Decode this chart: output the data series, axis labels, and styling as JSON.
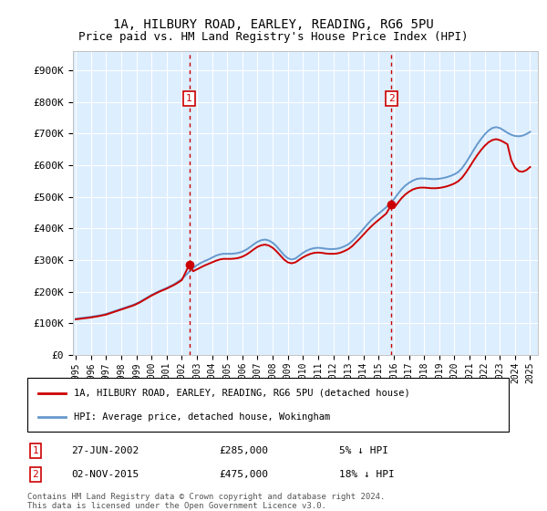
{
  "title1": "1A, HILBURY ROAD, EARLEY, READING, RG6 5PU",
  "title2": "Price paid vs. HM Land Registry's House Price Index (HPI)",
  "ylabel_ticks": [
    "£0",
    "£100K",
    "£200K",
    "£300K",
    "£400K",
    "£500K",
    "£600K",
    "£700K",
    "£800K",
    "£900K"
  ],
  "ytick_values": [
    0,
    100000,
    200000,
    300000,
    400000,
    500000,
    600000,
    700000,
    800000,
    900000
  ],
  "ylim": [
    0,
    960000
  ],
  "xlim_start": 1994.8,
  "xlim_end": 2025.5,
  "xtick_years": [
    1995,
    1996,
    1997,
    1998,
    1999,
    2000,
    2001,
    2002,
    2003,
    2004,
    2005,
    2006,
    2007,
    2008,
    2009,
    2010,
    2011,
    2012,
    2013,
    2014,
    2015,
    2016,
    2017,
    2018,
    2019,
    2020,
    2021,
    2022,
    2023,
    2024,
    2025
  ],
  "legend_line1": "1A, HILBURY ROAD, EARLEY, READING, RG6 5PU (detached house)",
  "legend_line2": "HPI: Average price, detached house, Wokingham",
  "sale1_date": "27-JUN-2002",
  "sale1_price": 285000,
  "sale1_label": "5% ↓ HPI",
  "sale1_x": 2002.49,
  "sale2_date": "02-NOV-2015",
  "sale2_price": 475000,
  "sale2_label": "18% ↓ HPI",
  "sale2_x": 2015.84,
  "footnote1": "Contains HM Land Registry data © Crown copyright and database right 2024.",
  "footnote2": "This data is licensed under the Open Government Licence v3.0.",
  "red_color": "#cc0000",
  "blue_color": "#6699cc",
  "bg_color": "#ddeeff",
  "grid_color": "#ffffff",
  "annotation_box_color": "#cc0000",
  "hpi_wokingham": [
    [
      1995.0,
      115000
    ],
    [
      1995.25,
      116500
    ],
    [
      1995.5,
      118000
    ],
    [
      1995.75,
      119500
    ],
    [
      1996.0,
      121000
    ],
    [
      1996.25,
      123000
    ],
    [
      1996.5,
      125000
    ],
    [
      1996.75,
      127000
    ],
    [
      1997.0,
      130000
    ],
    [
      1997.25,
      134000
    ],
    [
      1997.5,
      138000
    ],
    [
      1997.75,
      142000
    ],
    [
      1998.0,
      146000
    ],
    [
      1998.25,
      150000
    ],
    [
      1998.5,
      154000
    ],
    [
      1998.75,
      158000
    ],
    [
      1999.0,
      163000
    ],
    [
      1999.25,
      169000
    ],
    [
      1999.5,
      176000
    ],
    [
      1999.75,
      183000
    ],
    [
      2000.0,
      190000
    ],
    [
      2000.25,
      196000
    ],
    [
      2000.5,
      202000
    ],
    [
      2000.75,
      207000
    ],
    [
      2001.0,
      212000
    ],
    [
      2001.25,
      218000
    ],
    [
      2001.5,
      224000
    ],
    [
      2001.75,
      232000
    ],
    [
      2002.0,
      240000
    ],
    [
      2002.25,
      252000
    ],
    [
      2002.5,
      264000
    ],
    [
      2002.75,
      275000
    ],
    [
      2003.0,
      284000
    ],
    [
      2003.25,
      291000
    ],
    [
      2003.5,
      297000
    ],
    [
      2003.75,
      302000
    ],
    [
      2004.0,
      308000
    ],
    [
      2004.25,
      314000
    ],
    [
      2004.5,
      318000
    ],
    [
      2004.75,
      320000
    ],
    [
      2005.0,
      320000
    ],
    [
      2005.25,
      320000
    ],
    [
      2005.5,
      321000
    ],
    [
      2005.75,
      323000
    ],
    [
      2006.0,
      327000
    ],
    [
      2006.25,
      333000
    ],
    [
      2006.5,
      341000
    ],
    [
      2006.75,
      350000
    ],
    [
      2007.0,
      358000
    ],
    [
      2007.25,
      363000
    ],
    [
      2007.5,
      365000
    ],
    [
      2007.75,
      362000
    ],
    [
      2008.0,
      355000
    ],
    [
      2008.25,
      344000
    ],
    [
      2008.5,
      330000
    ],
    [
      2008.75,
      316000
    ],
    [
      2009.0,
      306000
    ],
    [
      2009.25,
      302000
    ],
    [
      2009.5,
      305000
    ],
    [
      2009.75,
      314000
    ],
    [
      2010.0,
      323000
    ],
    [
      2010.25,
      330000
    ],
    [
      2010.5,
      335000
    ],
    [
      2010.75,
      338000
    ],
    [
      2011.0,
      339000
    ],
    [
      2011.25,
      338000
    ],
    [
      2011.5,
      336000
    ],
    [
      2011.75,
      335000
    ],
    [
      2012.0,
      335000
    ],
    [
      2012.25,
      336000
    ],
    [
      2012.5,
      339000
    ],
    [
      2012.75,
      344000
    ],
    [
      2013.0,
      350000
    ],
    [
      2013.25,
      360000
    ],
    [
      2013.5,
      372000
    ],
    [
      2013.75,
      385000
    ],
    [
      2014.0,
      399000
    ],
    [
      2014.25,
      413000
    ],
    [
      2014.5,
      426000
    ],
    [
      2014.75,
      437000
    ],
    [
      2015.0,
      447000
    ],
    [
      2015.25,
      457000
    ],
    [
      2015.5,
      467000
    ],
    [
      2015.75,
      478000
    ],
    [
      2016.0,
      492000
    ],
    [
      2016.25,
      508000
    ],
    [
      2016.5,
      523000
    ],
    [
      2016.75,
      535000
    ],
    [
      2017.0,
      544000
    ],
    [
      2017.25,
      551000
    ],
    [
      2017.5,
      556000
    ],
    [
      2017.75,
      558000
    ],
    [
      2018.0,
      558000
    ],
    [
      2018.25,
      557000
    ],
    [
      2018.5,
      556000
    ],
    [
      2018.75,
      556000
    ],
    [
      2019.0,
      557000
    ],
    [
      2019.25,
      559000
    ],
    [
      2019.5,
      562000
    ],
    [
      2019.75,
      566000
    ],
    [
      2020.0,
      571000
    ],
    [
      2020.25,
      578000
    ],
    [
      2020.5,
      590000
    ],
    [
      2020.75,
      607000
    ],
    [
      2021.0,
      626000
    ],
    [
      2021.25,
      646000
    ],
    [
      2021.5,
      665000
    ],
    [
      2021.75,
      682000
    ],
    [
      2022.0,
      697000
    ],
    [
      2022.25,
      709000
    ],
    [
      2022.5,
      717000
    ],
    [
      2022.75,
      720000
    ],
    [
      2023.0,
      717000
    ],
    [
      2023.25,
      710000
    ],
    [
      2023.5,
      702000
    ],
    [
      2023.75,
      696000
    ],
    [
      2024.0,
      692000
    ],
    [
      2024.25,
      691000
    ],
    [
      2024.5,
      693000
    ],
    [
      2024.75,
      698000
    ],
    [
      2025.0,
      705000
    ]
  ],
  "price_paid": [
    [
      1995.0,
      113000
    ],
    [
      1995.25,
      114500
    ],
    [
      1995.5,
      116000
    ],
    [
      1995.75,
      117500
    ],
    [
      1996.0,
      119000
    ],
    [
      1996.25,
      121000
    ],
    [
      1996.5,
      123000
    ],
    [
      1996.75,
      125500
    ],
    [
      1997.0,
      128000
    ],
    [
      1997.25,
      132000
    ],
    [
      1997.5,
      136000
    ],
    [
      1997.75,
      140000
    ],
    [
      1998.0,
      144000
    ],
    [
      1998.25,
      148000
    ],
    [
      1998.5,
      152000
    ],
    [
      1998.75,
      156000
    ],
    [
      1999.0,
      161000
    ],
    [
      1999.25,
      167000
    ],
    [
      1999.5,
      174000
    ],
    [
      1999.75,
      181000
    ],
    [
      2000.0,
      188000
    ],
    [
      2000.25,
      194000
    ],
    [
      2000.5,
      200000
    ],
    [
      2000.75,
      205000
    ],
    [
      2001.0,
      210000
    ],
    [
      2001.25,
      216000
    ],
    [
      2001.5,
      222000
    ],
    [
      2001.75,
      229000
    ],
    [
      2002.0,
      237000
    ],
    [
      2002.49,
      285000
    ],
    [
      2002.75,
      265000
    ],
    [
      2003.0,
      271000
    ],
    [
      2003.25,
      277000
    ],
    [
      2003.5,
      283000
    ],
    [
      2003.75,
      288000
    ],
    [
      2004.0,
      293000
    ],
    [
      2004.25,
      298000
    ],
    [
      2004.5,
      302000
    ],
    [
      2004.75,
      304000
    ],
    [
      2005.0,
      304000
    ],
    [
      2005.25,
      304000
    ],
    [
      2005.5,
      305000
    ],
    [
      2005.75,
      307000
    ],
    [
      2006.0,
      311000
    ],
    [
      2006.25,
      317000
    ],
    [
      2006.5,
      325000
    ],
    [
      2006.75,
      334000
    ],
    [
      2007.0,
      342000
    ],
    [
      2007.25,
      347000
    ],
    [
      2007.5,
      349000
    ],
    [
      2007.75,
      346000
    ],
    [
      2008.0,
      339000
    ],
    [
      2008.25,
      328000
    ],
    [
      2008.5,
      315000
    ],
    [
      2008.75,
      302000
    ],
    [
      2009.0,
      293000
    ],
    [
      2009.25,
      290000
    ],
    [
      2009.5,
      293000
    ],
    [
      2009.75,
      301000
    ],
    [
      2010.0,
      309000
    ],
    [
      2010.25,
      315000
    ],
    [
      2010.5,
      320000
    ],
    [
      2010.75,
      323000
    ],
    [
      2011.0,
      324000
    ],
    [
      2011.25,
      323000
    ],
    [
      2011.5,
      321000
    ],
    [
      2011.75,
      320000
    ],
    [
      2012.0,
      320000
    ],
    [
      2012.25,
      321000
    ],
    [
      2012.5,
      324000
    ],
    [
      2012.75,
      329000
    ],
    [
      2013.0,
      335000
    ],
    [
      2013.25,
      344000
    ],
    [
      2013.5,
      356000
    ],
    [
      2013.75,
      368000
    ],
    [
      2014.0,
      381000
    ],
    [
      2014.25,
      394000
    ],
    [
      2014.5,
      406000
    ],
    [
      2014.75,
      417000
    ],
    [
      2015.0,
      427000
    ],
    [
      2015.25,
      437000
    ],
    [
      2015.5,
      447000
    ],
    [
      2015.84,
      475000
    ],
    [
      2016.0,
      464000
    ],
    [
      2016.25,
      480000
    ],
    [
      2016.5,
      495000
    ],
    [
      2016.75,
      507000
    ],
    [
      2017.0,
      516000
    ],
    [
      2017.25,
      523000
    ],
    [
      2017.5,
      527000
    ],
    [
      2017.75,
      529000
    ],
    [
      2018.0,
      529000
    ],
    [
      2018.25,
      528000
    ],
    [
      2018.5,
      527000
    ],
    [
      2018.75,
      527000
    ],
    [
      2019.0,
      528000
    ],
    [
      2019.25,
      530000
    ],
    [
      2019.5,
      533000
    ],
    [
      2019.75,
      537000
    ],
    [
      2020.0,
      542000
    ],
    [
      2020.25,
      549000
    ],
    [
      2020.5,
      560000
    ],
    [
      2020.75,
      576000
    ],
    [
      2021.0,
      594000
    ],
    [
      2021.25,
      613000
    ],
    [
      2021.5,
      631000
    ],
    [
      2021.75,
      647000
    ],
    [
      2022.0,
      661000
    ],
    [
      2022.25,
      672000
    ],
    [
      2022.5,
      679000
    ],
    [
      2022.75,
      682000
    ],
    [
      2023.0,
      679000
    ],
    [
      2023.25,
      673000
    ],
    [
      2023.5,
      666000
    ],
    [
      2023.75,
      616000
    ],
    [
      2024.0,
      592000
    ],
    [
      2024.25,
      581000
    ],
    [
      2024.5,
      579000
    ],
    [
      2024.75,
      584000
    ],
    [
      2025.0,
      594000
    ]
  ]
}
